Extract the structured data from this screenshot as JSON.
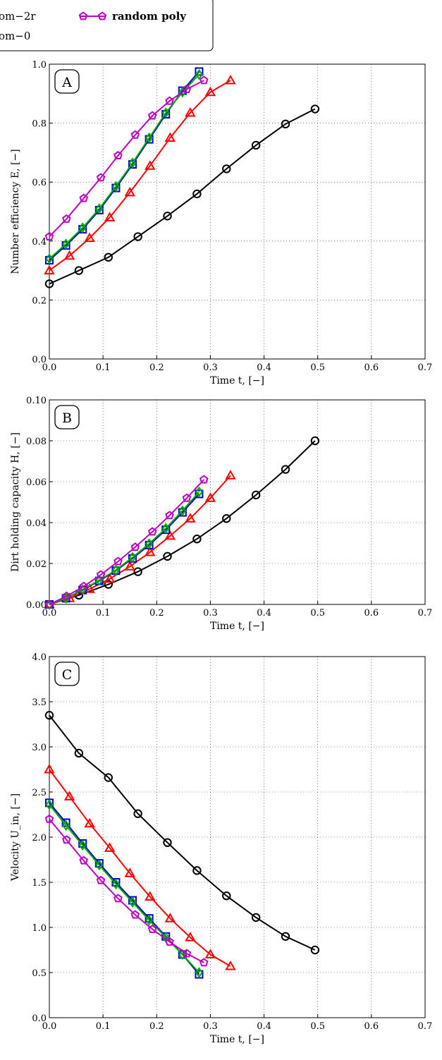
{
  "legend": {
    "entries": [
      {
        "text": "om−2r",
        "color": "#00aa00",
        "marker": "diamond",
        "visible_partial": true
      },
      {
        "text": "random poly",
        "color": "#bf00bf",
        "marker": "pentagon",
        "bold": true
      },
      {
        "text": "om−0",
        "color": "#0000cc",
        "marker": "square",
        "visible_partial": true
      }
    ]
  },
  "chart_data": [
    {
      "type": "line",
      "panel_label": "A",
      "xlabel": "Time t, [−]",
      "ylabel": "Number efficiency E, [−]",
      "xlim": [
        0,
        0.7
      ],
      "ylim": [
        0,
        1.0
      ],
      "xticks": [
        "0.0",
        "0.1",
        "0.2",
        "0.3",
        "0.4",
        "0.5",
        "0.6",
        "0.7"
      ],
      "yticks": [
        "0.0",
        "0.2",
        "0.4",
        "0.6",
        "0.8",
        "1.0"
      ],
      "grid": true,
      "series": [
        {
          "color": "#000000",
          "marker": "circle",
          "x": [
            0.0,
            0.055,
            0.11,
            0.165,
            0.22,
            0.275,
            0.33,
            0.385,
            0.44,
            0.495
          ],
          "y": [
            0.255,
            0.3,
            0.345,
            0.415,
            0.485,
            0.56,
            0.645,
            0.725,
            0.797,
            0.848
          ]
        },
        {
          "color": "#ff0000",
          "marker": "triangle",
          "x": [
            0.0,
            0.0375,
            0.075,
            0.1125,
            0.15,
            0.1875,
            0.225,
            0.2625,
            0.3,
            0.3375
          ],
          "y": [
            0.3,
            0.35,
            0.41,
            0.48,
            0.565,
            0.655,
            0.75,
            0.835,
            0.905,
            0.945
          ]
        },
        {
          "color": "#0000cc",
          "marker": "square",
          "x": [
            0.0,
            0.031,
            0.062,
            0.093,
            0.124,
            0.155,
            0.186,
            0.217,
            0.248,
            0.279
          ],
          "y": [
            0.335,
            0.385,
            0.44,
            0.505,
            0.58,
            0.66,
            0.745,
            0.83,
            0.91,
            0.975
          ]
        },
        {
          "name": "om−2r",
          "color": "#00aa00",
          "marker": "diamond",
          "x": [
            0.0,
            0.031,
            0.062,
            0.093,
            0.124,
            0.155,
            0.186,
            0.217,
            0.248,
            0.279
          ],
          "y": [
            0.34,
            0.39,
            0.445,
            0.51,
            0.585,
            0.665,
            0.75,
            0.835,
            0.905,
            0.965
          ]
        },
        {
          "name": "random poly",
          "color": "#bf00bf",
          "marker": "pentagon",
          "x": [
            0.0,
            0.032,
            0.064,
            0.096,
            0.128,
            0.16,
            0.192,
            0.224,
            0.256,
            0.288
          ],
          "y": [
            0.415,
            0.475,
            0.545,
            0.615,
            0.69,
            0.76,
            0.825,
            0.875,
            0.915,
            0.945
          ]
        }
      ]
    },
    {
      "type": "line",
      "panel_label": "B",
      "xlabel": "Time t, [−]",
      "ylabel": "Dirt holding capacity H, [−]",
      "xlim": [
        0,
        0.7
      ],
      "ylim": [
        0,
        0.1
      ],
      "xticks": [
        "0.0",
        "0.1",
        "0.2",
        "0.3",
        "0.4",
        "0.5",
        "0.6",
        "0.7"
      ],
      "yticks": [
        "0.00",
        "0.02",
        "0.04",
        "0.06",
        "0.08",
        "0.10"
      ],
      "grid": true,
      "series": [
        {
          "color": "#000000",
          "marker": "circle",
          "x": [
            0.0,
            0.055,
            0.11,
            0.165,
            0.22,
            0.275,
            0.33,
            0.385,
            0.44,
            0.495
          ],
          "y": [
            0.0,
            0.0045,
            0.0098,
            0.016,
            0.0235,
            0.032,
            0.042,
            0.0535,
            0.066,
            0.08
          ]
        },
        {
          "color": "#ff0000",
          "marker": "triangle",
          "x": [
            0.0,
            0.0375,
            0.075,
            0.1125,
            0.15,
            0.1875,
            0.225,
            0.2625,
            0.3,
            0.3375
          ],
          "y": [
            0.0,
            0.003,
            0.0075,
            0.0125,
            0.0185,
            0.0255,
            0.0335,
            0.042,
            0.052,
            0.063
          ]
        },
        {
          "color": "#0000cc",
          "marker": "square",
          "x": [
            0.0,
            0.031,
            0.062,
            0.093,
            0.124,
            0.155,
            0.186,
            0.217,
            0.248,
            0.279
          ],
          "y": [
            0.0,
            0.003,
            0.007,
            0.0115,
            0.0165,
            0.0225,
            0.029,
            0.0365,
            0.045,
            0.054
          ]
        },
        {
          "name": "om−2r",
          "color": "#00aa00",
          "marker": "diamond",
          "x": [
            0.0,
            0.031,
            0.062,
            0.093,
            0.124,
            0.155,
            0.186,
            0.217,
            0.248,
            0.279
          ],
          "y": [
            0.0,
            0.003,
            0.0072,
            0.0118,
            0.0168,
            0.023,
            0.0297,
            0.0372,
            0.0458,
            0.055
          ]
        },
        {
          "name": "random poly",
          "color": "#bf00bf",
          "marker": "pentagon",
          "x": [
            0.0,
            0.032,
            0.064,
            0.096,
            0.128,
            0.16,
            0.192,
            0.224,
            0.256,
            0.288
          ],
          "y": [
            0.0,
            0.004,
            0.0088,
            0.0145,
            0.021,
            0.028,
            0.0355,
            0.0435,
            0.052,
            0.061
          ]
        }
      ]
    },
    {
      "type": "line",
      "panel_label": "C",
      "xlabel": "Time t, [−]",
      "ylabel": "Velocity U_in, [−]",
      "xlim": [
        0,
        0.7
      ],
      "ylim": [
        0,
        4.0
      ],
      "xticks": [
        "0.0",
        "0.1",
        "0.2",
        "0.3",
        "0.4",
        "0.5",
        "0.6",
        "0.7"
      ],
      "yticks": [
        "0.0",
        "0.5",
        "1.0",
        "1.5",
        "2.0",
        "2.5",
        "3.0",
        "3.5",
        "4.0"
      ],
      "grid": true,
      "series": [
        {
          "color": "#000000",
          "marker": "circle",
          "x": [
            0.0,
            0.055,
            0.11,
            0.165,
            0.22,
            0.275,
            0.33,
            0.385,
            0.44,
            0.495
          ],
          "y": [
            3.35,
            2.93,
            2.66,
            2.26,
            1.94,
            1.63,
            1.35,
            1.11,
            0.9,
            0.75
          ]
        },
        {
          "color": "#ff0000",
          "marker": "triangle",
          "x": [
            0.0,
            0.0375,
            0.075,
            0.1125,
            0.15,
            0.1875,
            0.225,
            0.2625,
            0.3,
            0.3375
          ],
          "y": [
            2.75,
            2.45,
            2.15,
            1.88,
            1.6,
            1.34,
            1.1,
            0.89,
            0.7,
            0.57
          ]
        },
        {
          "color": "#0000cc",
          "marker": "square",
          "x": [
            0.0,
            0.031,
            0.062,
            0.093,
            0.124,
            0.155,
            0.186,
            0.217,
            0.248,
            0.279
          ],
          "y": [
            2.38,
            2.16,
            1.93,
            1.71,
            1.5,
            1.3,
            1.1,
            0.9,
            0.7,
            0.48
          ]
        },
        {
          "name": "om−2r",
          "color": "#00aa00",
          "marker": "diamond",
          "x": [
            0.0,
            0.031,
            0.062,
            0.093,
            0.124,
            0.155,
            0.186,
            0.217,
            0.248,
            0.279
          ],
          "y": [
            2.36,
            2.13,
            1.91,
            1.69,
            1.48,
            1.28,
            1.08,
            0.89,
            0.7,
            0.5
          ]
        },
        {
          "name": "random poly",
          "color": "#bf00bf",
          "marker": "pentagon",
          "x": [
            0.0,
            0.032,
            0.064,
            0.096,
            0.128,
            0.16,
            0.192,
            0.224,
            0.256,
            0.288
          ],
          "y": [
            2.2,
            1.97,
            1.74,
            1.52,
            1.32,
            1.14,
            0.98,
            0.84,
            0.71,
            0.61
          ]
        }
      ]
    }
  ]
}
